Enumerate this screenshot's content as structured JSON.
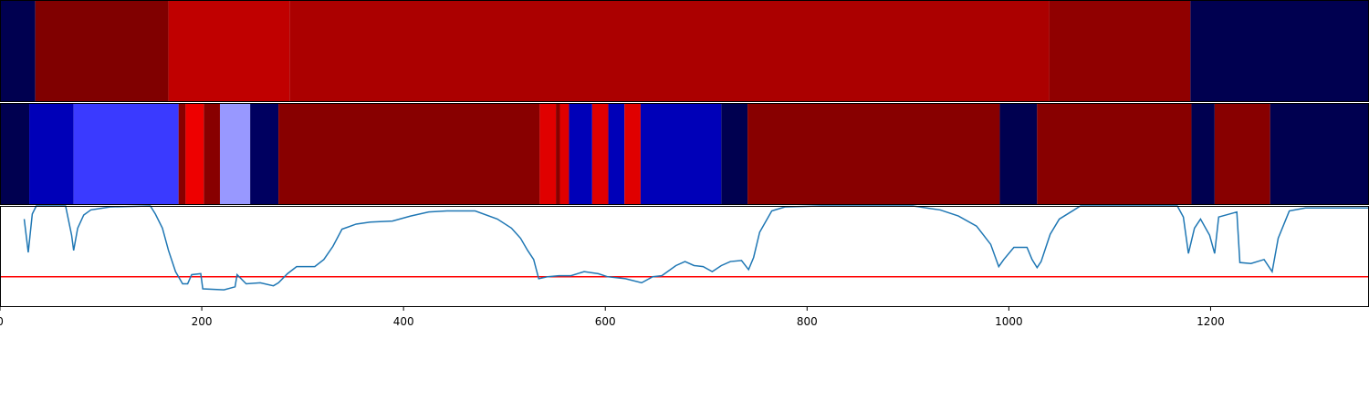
{
  "chart_data": [
    {
      "type": "strip",
      "xlim": [
        0,
        1357
      ],
      "edges": [
        0,
        35,
        167,
        287,
        1040,
        1180,
        1357
      ],
      "colors": [
        "#000050",
        "#800000",
        "#c00000",
        "#ab0000",
        "#900000",
        "#000050"
      ]
    },
    {
      "type": "strip",
      "xlim": [
        0,
        1357
      ],
      "edges": [
        0,
        29,
        73,
        177,
        184,
        202,
        218,
        248,
        276,
        535,
        551,
        555,
        564,
        587,
        603,
        619,
        635,
        715,
        741,
        991,
        1028,
        1181,
        1204,
        1259,
        1357
      ],
      "colors": [
        "#000050",
        "#0000b8",
        "#3a3aff",
        "#880000",
        "#ee0000",
        "#880000",
        "#9898ff",
        "#000060",
        "#880000",
        "#e00000",
        "#880000",
        "#e00000",
        "#0000b8",
        "#e00000",
        "#0000b8",
        "#e00000",
        "#0000b8",
        "#000050",
        "#880000",
        "#000050",
        "#880000",
        "#000050",
        "#880000",
        "#000050"
      ]
    },
    {
      "type": "line",
      "xlim": [
        0,
        1357
      ],
      "ylim": [
        0,
        1
      ],
      "xticks": [
        0,
        200,
        400,
        600,
        800,
        1000,
        1200
      ],
      "hline": {
        "value": 0.3,
        "color": "#ff0000"
      },
      "x": [
        24,
        28,
        32,
        36,
        65,
        71,
        73,
        77,
        83,
        90,
        109,
        149,
        154,
        161,
        167,
        174,
        181,
        186,
        190,
        199,
        201,
        222,
        233,
        235,
        244,
        258,
        271,
        276,
        285,
        294,
        312,
        321,
        330,
        339,
        353,
        367,
        389,
        407,
        425,
        443,
        471,
        493,
        507,
        516,
        523,
        529,
        534,
        543,
        554,
        566,
        579,
        593,
        602,
        620,
        636,
        647,
        656,
        670,
        679,
        688,
        697,
        706,
        715,
        724,
        735,
        742,
        747,
        753,
        765,
        778,
        814,
        905,
        932,
        950,
        968,
        982,
        990,
        995,
        1005,
        1018,
        1023,
        1028,
        1032,
        1041,
        1050,
        1063,
        1071,
        1086,
        1167,
        1173,
        1178,
        1184,
        1190,
        1199,
        1204,
        1208,
        1226,
        1229,
        1240,
        1253,
        1261,
        1267,
        1278,
        1294,
        1357
      ],
      "series": [
        {
          "color": "#1f77b4",
          "values": [
            0.87,
            0.54,
            0.92,
            1.0,
            1.0,
            0.71,
            0.56,
            0.78,
            0.91,
            0.96,
            0.99,
            1.0,
            0.92,
            0.78,
            0.56,
            0.35,
            0.23,
            0.23,
            0.32,
            0.33,
            0.18,
            0.17,
            0.2,
            0.32,
            0.23,
            0.24,
            0.21,
            0.24,
            0.33,
            0.4,
            0.4,
            0.47,
            0.6,
            0.77,
            0.82,
            0.84,
            0.85,
            0.9,
            0.94,
            0.95,
            0.95,
            0.87,
            0.78,
            0.68,
            0.56,
            0.47,
            0.28,
            0.3,
            0.31,
            0.31,
            0.35,
            0.33,
            0.3,
            0.28,
            0.24,
            0.3,
            0.31,
            0.41,
            0.45,
            0.41,
            0.4,
            0.35,
            0.41,
            0.45,
            0.46,
            0.37,
            0.49,
            0.74,
            0.95,
            0.99,
            1.0,
            1.0,
            0.96,
            0.9,
            0.8,
            0.62,
            0.4,
            0.47,
            0.59,
            0.59,
            0.47,
            0.39,
            0.45,
            0.72,
            0.87,
            0.95,
            1.0,
            1.0,
            1.0,
            0.89,
            0.53,
            0.78,
            0.87,
            0.71,
            0.53,
            0.89,
            0.94,
            0.44,
            0.43,
            0.47,
            0.35,
            0.68,
            0.95,
            0.98,
            0.98
          ]
        }
      ]
    }
  ]
}
